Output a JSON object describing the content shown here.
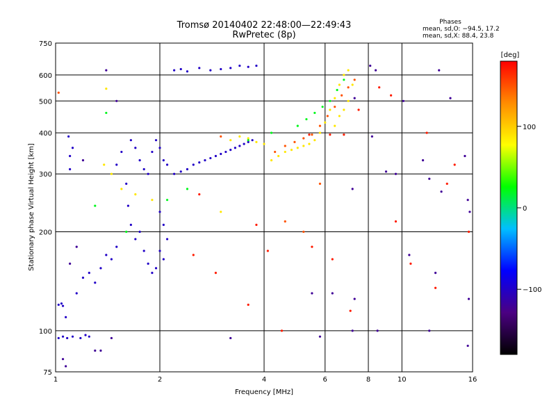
{
  "chart_data": {
    "type": "scatter",
    "title": "Tromsø 20140402 22:48:00—22:49:43",
    "subtitle": "RwPretec (8p)",
    "xlabel": "Frequency [MHz]",
    "ylabel": "Stationary phase Virtual Height [km]",
    "x_scale": "log",
    "y_scale": "log",
    "xlim": [
      1,
      16
    ],
    "ylim": [
      75,
      750
    ],
    "x_ticks": [
      1,
      2,
      4,
      6,
      8,
      10,
      16
    ],
    "x_tick_labels": [
      "1",
      "2",
      "4",
      "6",
      "8",
      "10",
      "16"
    ],
    "y_ticks": [
      75,
      100,
      200,
      300,
      400,
      500,
      600,
      750
    ],
    "y_tick_labels": [
      "75",
      "100",
      "200",
      "300",
      "400",
      "500",
      "600",
      "750"
    ],
    "grid": true,
    "stats": {
      "heading": "Phases",
      "line1": "mean, sd,O: −94.5, 17.2",
      "line2": "mean, sd,X:  88.4, 23.8"
    },
    "colorbar": {
      "label": "[deg]",
      "range": [
        -180,
        180
      ],
      "ticks": [
        100,
        0,
        -100
      ],
      "tick_labels": [
        "100",
        "0",
        "−100"
      ],
      "colors": [
        "#000000",
        "#4b0082",
        "#0000ff",
        "#00bfff",
        "#00ff00",
        "#ffff00",
        "#ff8c00",
        "#ff0000"
      ]
    },
    "series": [
      {
        "phase_mean": -100,
        "points": [
          [
            1.02,
            120
          ],
          [
            1.04,
            121
          ],
          [
            1.05,
            119
          ],
          [
            1.02,
            95
          ],
          [
            1.05,
            96
          ],
          [
            1.08,
            95
          ],
          [
            1.12,
            96
          ],
          [
            1.18,
            95
          ],
          [
            1.22,
            97
          ],
          [
            1.25,
            96
          ],
          [
            1.07,
            110
          ],
          [
            1.09,
            390
          ],
          [
            1.1,
            340
          ],
          [
            1.1,
            310
          ],
          [
            1.12,
            360
          ],
          [
            1.15,
            130
          ],
          [
            1.2,
            145
          ],
          [
            1.25,
            150
          ],
          [
            1.3,
            140
          ],
          [
            1.35,
            155
          ],
          [
            1.4,
            170
          ],
          [
            1.45,
            165
          ],
          [
            1.5,
            180
          ],
          [
            1.5,
            320
          ],
          [
            1.55,
            350
          ],
          [
            1.6,
            280
          ],
          [
            1.62,
            240
          ],
          [
            1.65,
            210
          ],
          [
            1.7,
            190
          ],
          [
            1.75,
            200
          ],
          [
            1.8,
            175
          ],
          [
            1.85,
            160
          ],
          [
            1.9,
            150
          ],
          [
            1.95,
            155
          ],
          [
            1.65,
            380
          ],
          [
            1.7,
            360
          ],
          [
            1.75,
            330
          ],
          [
            1.8,
            310
          ],
          [
            1.85,
            300
          ],
          [
            1.9,
            350
          ],
          [
            1.95,
            380
          ],
          [
            2.0,
            360
          ],
          [
            2.05,
            330
          ],
          [
            2.1,
            320
          ],
          [
            2.0,
            230
          ],
          [
            2.05,
            210
          ],
          [
            2.1,
            190
          ],
          [
            2.0,
            175
          ],
          [
            2.05,
            165
          ],
          [
            2.2,
            300
          ],
          [
            2.3,
            305
          ],
          [
            2.4,
            310
          ],
          [
            2.5,
            320
          ],
          [
            2.6,
            325
          ],
          [
            2.7,
            330
          ],
          [
            2.8,
            335
          ],
          [
            2.9,
            340
          ],
          [
            3.0,
            345
          ],
          [
            3.1,
            350
          ],
          [
            3.2,
            355
          ],
          [
            3.3,
            360
          ],
          [
            3.4,
            365
          ],
          [
            3.5,
            370
          ],
          [
            3.6,
            375
          ],
          [
            3.7,
            380
          ],
          [
            2.2,
            620
          ],
          [
            2.3,
            625
          ],
          [
            2.4,
            615
          ],
          [
            2.6,
            630
          ],
          [
            2.8,
            620
          ],
          [
            3.0,
            625
          ],
          [
            3.2,
            630
          ],
          [
            3.4,
            640
          ],
          [
            3.6,
            635
          ],
          [
            3.8,
            640
          ]
        ]
      },
      {
        "phase_mean": 88,
        "points": [
          [
            4.2,
            330
          ],
          [
            4.4,
            340
          ],
          [
            4.6,
            350
          ],
          [
            4.8,
            355
          ],
          [
            5.0,
            360
          ],
          [
            5.2,
            365
          ],
          [
            5.4,
            370
          ],
          [
            5.6,
            380
          ],
          [
            5.8,
            400
          ],
          [
            6.0,
            430
          ],
          [
            6.2,
            470
          ],
          [
            6.4,
            510
          ],
          [
            6.6,
            560
          ],
          [
            6.8,
            600
          ],
          [
            7.0,
            620
          ],
          [
            7.2,
            560
          ],
          [
            7.0,
            500
          ],
          [
            6.8,
            470
          ],
          [
            6.6,
            450
          ],
          [
            6.4,
            420
          ],
          [
            3.2,
            380
          ],
          [
            3.4,
            390
          ],
          [
            3.6,
            385
          ],
          [
            3.8,
            375
          ],
          [
            4.0,
            370
          ],
          [
            1.4,
            545
          ],
          [
            1.38,
            320
          ],
          [
            1.45,
            300
          ],
          [
            1.55,
            270
          ],
          [
            1.7,
            260
          ],
          [
            1.9,
            250
          ],
          [
            3.0,
            230
          ]
        ]
      },
      {
        "phase_mean": 150,
        "points": [
          [
            4.3,
            350
          ],
          [
            4.6,
            365
          ],
          [
            4.9,
            375
          ],
          [
            5.2,
            385
          ],
          [
            5.5,
            395
          ],
          [
            5.8,
            420
          ],
          [
            6.1,
            450
          ],
          [
            6.4,
            480
          ],
          [
            6.7,
            520
          ],
          [
            7.0,
            550
          ],
          [
            7.3,
            580
          ],
          [
            1.02,
            530
          ],
          [
            3.0,
            390
          ],
          [
            4.6,
            215
          ],
          [
            5.2,
            200
          ],
          [
            5.8,
            280
          ]
        ]
      },
      {
        "phase_mean": 20,
        "points": [
          [
            5.0,
            420
          ],
          [
            5.3,
            440
          ],
          [
            5.6,
            460
          ],
          [
            5.9,
            480
          ],
          [
            6.2,
            500
          ],
          [
            6.5,
            540
          ],
          [
            6.8,
            580
          ],
          [
            2.1,
            250
          ],
          [
            2.4,
            270
          ],
          [
            1.4,
            460
          ],
          [
            1.3,
            240
          ],
          [
            3.6,
            380
          ],
          [
            4.2,
            400
          ],
          [
            1.6,
            200
          ]
        ]
      },
      {
        "phase_mean": 170,
        "points": [
          [
            2.6,
            260
          ],
          [
            2.5,
            170
          ],
          [
            2.9,
            150
          ],
          [
            3.6,
            120
          ],
          [
            4.5,
            100
          ],
          [
            5.5,
            180
          ],
          [
            6.3,
            165
          ],
          [
            7.5,
            470
          ],
          [
            8.6,
            550
          ],
          [
            9.3,
            520
          ],
          [
            10.6,
            160
          ],
          [
            11.8,
            400
          ],
          [
            12.5,
            135
          ],
          [
            14.2,
            320
          ],
          [
            15.6,
            200
          ],
          [
            3.8,
            210
          ],
          [
            4.1,
            175
          ],
          [
            7.1,
            115
          ],
          [
            9.6,
            215
          ],
          [
            13.5,
            280
          ],
          [
            6.2,
            395
          ],
          [
            6.8,
            395
          ],
          [
            5.4,
            395
          ]
        ]
      },
      {
        "phase_mean": -120,
        "points": [
          [
            1.05,
            82
          ],
          [
            1.07,
            78
          ],
          [
            1.3,
            87
          ],
          [
            3.2,
            95
          ],
          [
            5.8,
            96
          ],
          [
            7.2,
            100
          ],
          [
            8.2,
            390
          ],
          [
            9.0,
            305
          ],
          [
            9.6,
            300
          ],
          [
            10.1,
            500
          ],
          [
            11.5,
            330
          ],
          [
            12.0,
            290
          ],
          [
            13.0,
            265
          ],
          [
            15.5,
            250
          ],
          [
            15.7,
            230
          ],
          [
            7.2,
            270
          ],
          [
            7.3,
            510
          ],
          [
            8.1,
            640
          ],
          [
            8.4,
            620
          ],
          [
            5.5,
            130
          ],
          [
            6.3,
            130
          ],
          [
            7.3,
            125
          ],
          [
            8.5,
            100
          ],
          [
            10.5,
            170
          ],
          [
            12.5,
            150
          ],
          [
            12.8,
            620
          ],
          [
            13.8,
            510
          ],
          [
            15.2,
            340
          ],
          [
            15.6,
            125
          ],
          [
            15.5,
            90
          ],
          [
            12.0,
            100
          ],
          [
            1.4,
            620
          ],
          [
            1.5,
            500
          ],
          [
            1.2,
            330
          ],
          [
            1.15,
            180
          ],
          [
            1.1,
            160
          ],
          [
            1.45,
            95
          ],
          [
            1.35,
            87
          ]
        ]
      }
    ]
  }
}
